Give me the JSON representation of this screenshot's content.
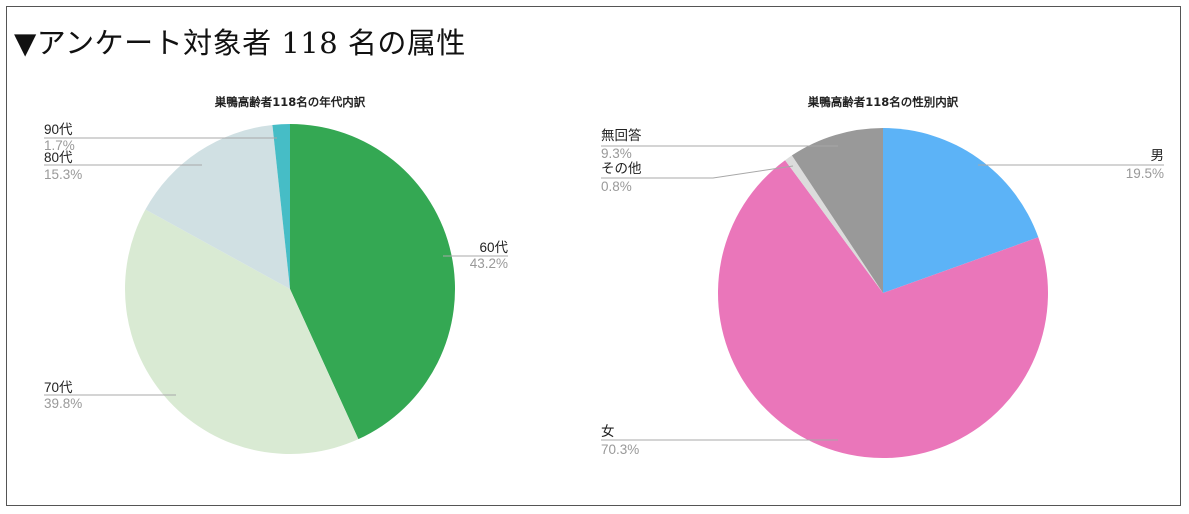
{
  "heading": "▼アンケート対象者 118 名の属性",
  "chart_data": [
    {
      "type": "pie",
      "title": "巣鴨高齢者118名の年代内訳",
      "start_angle_deg": 0,
      "direction": "clockwise",
      "slices": [
        {
          "label": "60代",
          "pct_label": "43.2%",
          "value": 43.2,
          "color": "#34a853"
        },
        {
          "label": "70代",
          "pct_label": "39.8%",
          "value": 39.8,
          "color": "#d9ead3"
        },
        {
          "label": "80代",
          "pct_label": "15.3%",
          "value": 15.3,
          "color": "#d0e0e3"
        },
        {
          "label": "90代",
          "pct_label": "1.7%",
          "value": 1.7,
          "color": "#46bdc6"
        }
      ]
    },
    {
      "type": "pie",
      "title": "巣鴨高齢者118名の性別内訳",
      "start_angle_deg": 0,
      "direction": "clockwise",
      "slices": [
        {
          "label": "男",
          "pct_label": "19.5%",
          "value": 19.5,
          "color": "#5cb3f7"
        },
        {
          "label": "女",
          "pct_label": "70.3%",
          "value": 70.3,
          "color": "#ea76ba"
        },
        {
          "label": "その他",
          "pct_label": "0.8%",
          "value": 0.8,
          "color": "#dcdcdc"
        },
        {
          "label": "無回答",
          "pct_label": "9.3%",
          "value": 9.3,
          "color": "#999999"
        }
      ]
    }
  ]
}
